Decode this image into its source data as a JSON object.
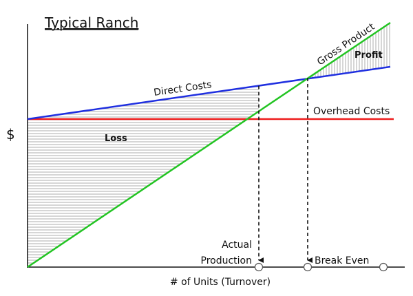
{
  "title": "Typical Ranch",
  "y_axis_label": "$",
  "x_axis_label": "# of Units (Turnover)",
  "lines": [
    {
      "label": "Gross Product"
    },
    {
      "label": "Direct Costs"
    },
    {
      "label": "Overhead Costs"
    }
  ],
  "regions": [
    {
      "label": "Loss"
    },
    {
      "label": "Profit"
    }
  ],
  "markers": [
    {
      "label_lines": [
        "Actual",
        "Production"
      ]
    },
    {
      "label": "Break Even"
    }
  ]
}
